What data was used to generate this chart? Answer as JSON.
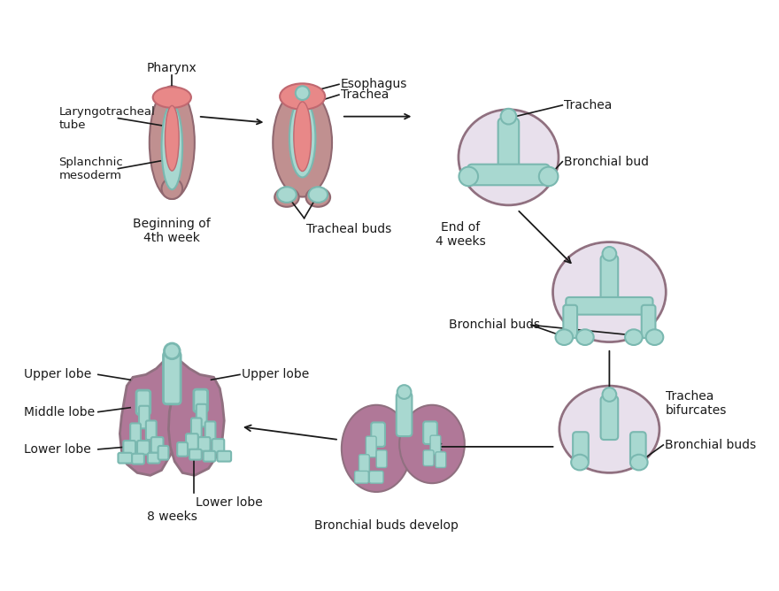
{
  "bg_color": "#ffffff",
  "teal_fill": "#a8d8d0",
  "teal_dark": "#7ab8b0",
  "pink_fill": "#e88888",
  "pink_border": "#c06870",
  "purple_fill": "#b07898",
  "purple_border": "#907080",
  "purple_outer": "#c090a8",
  "text_color": "#1a1a1a",
  "labels": {
    "pharynx": "Pharynx",
    "laryngotracheal": "Laryngotracheal\ntube",
    "splanchnic": "Splanchnic\nmesoderm",
    "beginning": "Beginning of\n4th week",
    "tracheal_buds1": "Tracheal buds",
    "esophagus": "Esophagus",
    "trachea1": "Trachea",
    "tracheal_buds2": "Tracheal buds",
    "trachea2": "Trachea",
    "bronchial_bud": "Bronchial bud",
    "end_4weeks": "End of\n4 weeks",
    "bronchial_buds1": "Bronchial buds",
    "trachea_bifurcates": "Trachea\nbifurcates",
    "bronchial_buds2": "Bronchial buds",
    "bronchial_buds_develop": "Bronchial buds develop",
    "upper_lobe_left": "Upper lobe",
    "middle_lobe": "Middle lobe",
    "lower_lobe_left": "Lower lobe",
    "upper_lobe_right": "Upper lobe",
    "lower_lobe_right": "Lower lobe",
    "8weeks": "8 weeks"
  }
}
